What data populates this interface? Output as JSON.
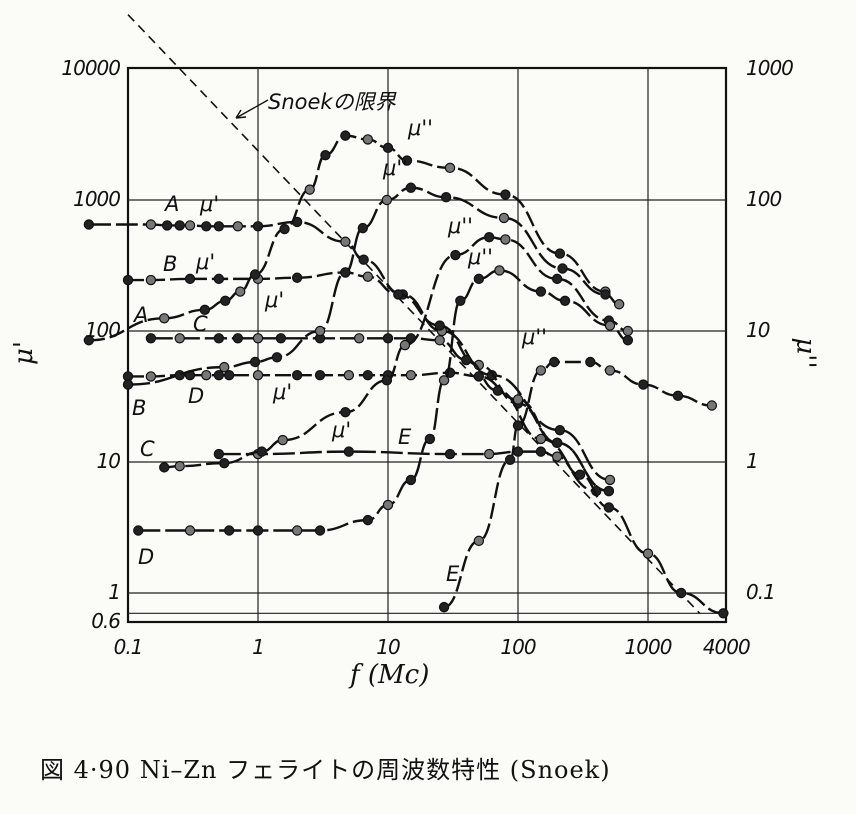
{
  "chart_data": {
    "type": "line",
    "title": "",
    "caption": "図 4·90  Ni–Zn フェライトの周波数特性 (Snoek)",
    "xlabel": "f (Mc)",
    "ylabel_left": "μ'",
    "ylabel_right": "μ''",
    "xscale": "log",
    "yscale": "log",
    "xlim": [
      0.1,
      4000
    ],
    "ylim_left": [
      0.6,
      10000
    ],
    "ylim_right": [
      0.06,
      1000
    ],
    "grid": true,
    "x_ticks": [
      {
        "v": 0.1,
        "t": "0.1"
      },
      {
        "v": 1,
        "t": "1"
      },
      {
        "v": 10,
        "t": "10"
      },
      {
        "v": 100,
        "t": "100"
      },
      {
        "v": 1000,
        "t": "1000"
      },
      {
        "v": 4000,
        "t": "4000"
      }
    ],
    "y_left_ticks": [
      {
        "v": 10000,
        "t": "10000"
      },
      {
        "v": 1000,
        "t": "1000"
      },
      {
        "v": 100,
        "t": "100"
      },
      {
        "v": 10,
        "t": "10"
      },
      {
        "v": 1,
        "t": "1"
      },
      {
        "v": 0.6,
        "t": "0.6"
      }
    ],
    "y_right_ticks": [
      {
        "v": 1000,
        "t": "1000"
      },
      {
        "v": 100,
        "t": "100"
      },
      {
        "v": 10,
        "t": "10"
      },
      {
        "v": 1,
        "t": "1"
      },
      {
        "v": 0.1,
        "t": "0.1"
      }
    ],
    "series": [
      {
        "name": "A μ'",
        "axis": "left",
        "x": [
          0.05,
          0.15,
          0.2,
          0.25,
          0.3,
          0.4,
          0.5,
          0.7,
          1,
          2,
          4.7,
          6.5,
          13,
          26,
          63,
          210,
          510
        ],
        "y": [
          650,
          650,
          640,
          640,
          640,
          630,
          630,
          630,
          630,
          680,
          480,
          350,
          190,
          100,
          46,
          17.5,
          7.3
        ]
      },
      {
        "name": "B μ'",
        "axis": "left",
        "x": [
          0.1,
          0.15,
          0.3,
          0.5,
          1,
          2,
          4.7,
          7,
          12,
          25,
          50,
          100,
          200,
          500
        ],
        "y": [
          245,
          245,
          250,
          250,
          250,
          255,
          280,
          260,
          190,
          110,
          55,
          28,
          14,
          6
        ]
      },
      {
        "name": "C μ'",
        "axis": "left",
        "x": [
          0.15,
          0.25,
          0.5,
          0.7,
          1,
          1.5,
          3,
          6,
          10,
          15,
          25,
          40,
          70,
          150,
          400
        ],
        "y": [
          88,
          88,
          88,
          88,
          88,
          88,
          88,
          88,
          88,
          88,
          85,
          60,
          35,
          15,
          6
        ]
      },
      {
        "name": "D μ'",
        "axis": "left",
        "x": [
          0.1,
          0.15,
          0.25,
          0.3,
          0.4,
          0.5,
          0.6,
          1,
          2,
          3,
          5,
          7,
          10,
          15,
          30,
          50,
          100,
          200,
          500
        ],
        "y": [
          45,
          45,
          46,
          46,
          46,
          46,
          46,
          46,
          46,
          46,
          46,
          46,
          46,
          46,
          48,
          45,
          30,
          14,
          6
        ]
      },
      {
        "name": "E μ'",
        "axis": "left",
        "x": [
          0.5,
          1,
          5,
          30,
          60,
          100,
          150,
          200,
          300,
          500,
          1000,
          1800,
          3800
        ],
        "y": [
          11.5,
          11.5,
          12,
          11.5,
          11.5,
          12,
          12,
          11,
          8,
          4.5,
          2,
          1.0,
          0.7
        ]
      },
      {
        "name": "A μ''",
        "axis": "right",
        "x": [
          0.05,
          0.19,
          0.39,
          0.56,
          0.73,
          0.95,
          1.6,
          2.5,
          3.3,
          4.7,
          7,
          10,
          14,
          30,
          80,
          210,
          470
        ],
        "y": [
          8.5,
          12.5,
          14.5,
          17,
          20,
          27,
          60,
          120,
          220,
          310,
          290,
          250,
          200,
          176,
          110,
          39,
          20
        ]
      },
      {
        "name": "B μ''",
        "axis": "right",
        "x": [
          0.1,
          0.55,
          0.95,
          1.4,
          3,
          4.7,
          6.4,
          9.8,
          15,
          28,
          78,
          220,
          470,
          600
        ],
        "y": [
          3.9,
          5.3,
          5.8,
          6.3,
          10,
          28,
          61,
          100,
          124,
          105,
          73,
          30,
          19,
          16
        ]
      },
      {
        "name": "C μ''",
        "axis": "right",
        "x": [
          0.19,
          0.25,
          0.55,
          1.07,
          1.55,
          4.7,
          9.8,
          13.5,
          33,
          60,
          80,
          200,
          500,
          700
        ],
        "y": [
          0.91,
          0.93,
          0.98,
          1.2,
          1.47,
          2.4,
          4.2,
          7.8,
          38,
          52,
          50,
          25,
          12,
          10
        ]
      },
      {
        "name": "D μ''",
        "axis": "right",
        "x": [
          0.12,
          0.3,
          0.6,
          1,
          2,
          3,
          7,
          10,
          15,
          21,
          27,
          36,
          50,
          72,
          150,
          230,
          510,
          700
        ],
        "y": [
          0.3,
          0.3,
          0.3,
          0.3,
          0.3,
          0.3,
          0.36,
          0.47,
          0.73,
          1.5,
          4.2,
          17,
          25,
          29,
          20,
          17,
          11,
          8.5
        ]
      },
      {
        "name": "E μ''",
        "axis": "right",
        "x": [
          27,
          50,
          87,
          100,
          150,
          190,
          360,
          510,
          920,
          1700,
          3100
        ],
        "y": [
          0.078,
          0.25,
          1.04,
          1.9,
          5,
          5.8,
          5.8,
          5,
          3.9,
          3.2,
          2.7
        ]
      }
    ],
    "snoek_limit": {
      "name": "Snoekの限界",
      "axis": "left",
      "x": [
        0.1,
        2500
      ],
      "y": [
        26000,
        0.7
      ]
    },
    "annotations": {
      "snoek_label": "Snoekの限界",
      "curve_labels": [
        "A",
        "A",
        "B",
        "B",
        "C",
        "C",
        "D",
        "D",
        "E",
        "E"
      ],
      "mu1_labels": [
        "μ'",
        "μ'",
        "μ'",
        "μ'",
        "μ'"
      ],
      "mu2_labels": [
        "μ''",
        "μ''",
        "μ''",
        "μ''",
        "μ''"
      ]
    }
  }
}
